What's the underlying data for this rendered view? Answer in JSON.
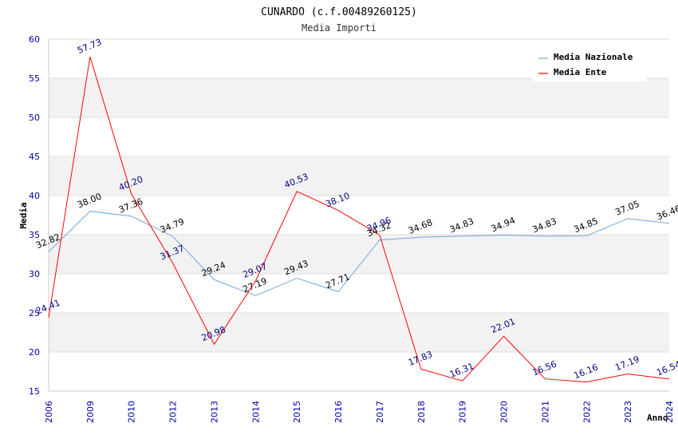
{
  "chart_data": {
    "type": "line",
    "title": "CUNARDO (c.f.00489260125)",
    "subtitle": "Media Importi",
    "xlabel": "Anno",
    "ylabel": "Media",
    "ylim": [
      15,
      60
    ],
    "yticks": [
      "15",
      "20",
      "25",
      "30",
      "35",
      "40",
      "45",
      "50",
      "55",
      "60"
    ],
    "categories": [
      "2006",
      "2009",
      "2010",
      "2012",
      "2013",
      "2014",
      "2015",
      "2016",
      "2017",
      "2018",
      "2019",
      "2020",
      "2021",
      "2022",
      "2023",
      "2024"
    ],
    "series": [
      {
        "name": "Media Nazionale",
        "color": "#6fa8dc",
        "values": [
          32.82,
          38.0,
          37.36,
          34.79,
          29.24,
          27.19,
          29.43,
          27.71,
          34.32,
          34.68,
          34.83,
          34.94,
          34.83,
          34.85,
          37.05,
          36.46
        ],
        "labels": [
          "32.82",
          "38.00",
          "37.36",
          "34.79",
          "29.24",
          "27.19",
          "29.43",
          "27.71",
          "34.32",
          "34.68",
          "34.83",
          "34.94",
          "34.83",
          "34.85",
          "37.05",
          "36.46"
        ]
      },
      {
        "name": "Media Ente",
        "color": "#ff0000",
        "values": [
          24.41,
          57.73,
          40.2,
          31.37,
          20.98,
          29.07,
          40.53,
          38.1,
          34.96,
          17.83,
          16.31,
          22.01,
          16.56,
          16.16,
          17.19,
          16.54
        ],
        "labels": [
          "24.41",
          "57.73",
          "40.20",
          "31.37",
          "20.98",
          "29.07",
          "40.53",
          "38.10",
          "34.96",
          "17.83",
          "16.31",
          "22.01",
          "16.56",
          "16.16",
          "17.19",
          "16.54"
        ]
      }
    ],
    "grid": true,
    "alternating_bands": true,
    "legend_position": "top-right"
  }
}
